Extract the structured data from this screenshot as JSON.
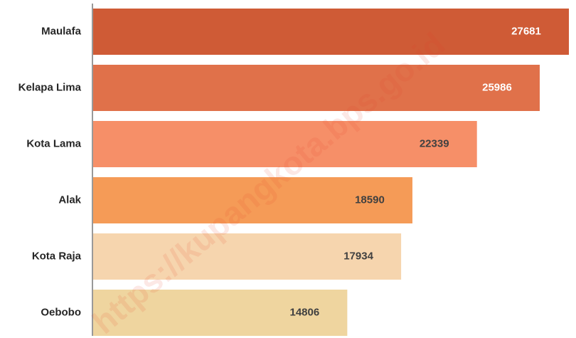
{
  "chart_data": {
    "type": "bar",
    "orientation": "horizontal",
    "categories": [
      "Maulafa",
      "Kelapa Lima",
      "Kota Lama",
      "Alak",
      "Kota Raja",
      "Oebobo"
    ],
    "values": [
      27681,
      25986,
      22339,
      18590,
      17934,
      14806
    ],
    "colors": [
      "#cf5b36",
      "#e0714a",
      "#f68f68",
      "#f59b57",
      "#f6d5ae",
      "#efd59f"
    ],
    "label_colors": [
      "#ffffff",
      "#ffffff",
      "#404040",
      "#404040",
      "#404040",
      "#404040"
    ],
    "watermark": "https://kupangkota.bps.go.id"
  }
}
